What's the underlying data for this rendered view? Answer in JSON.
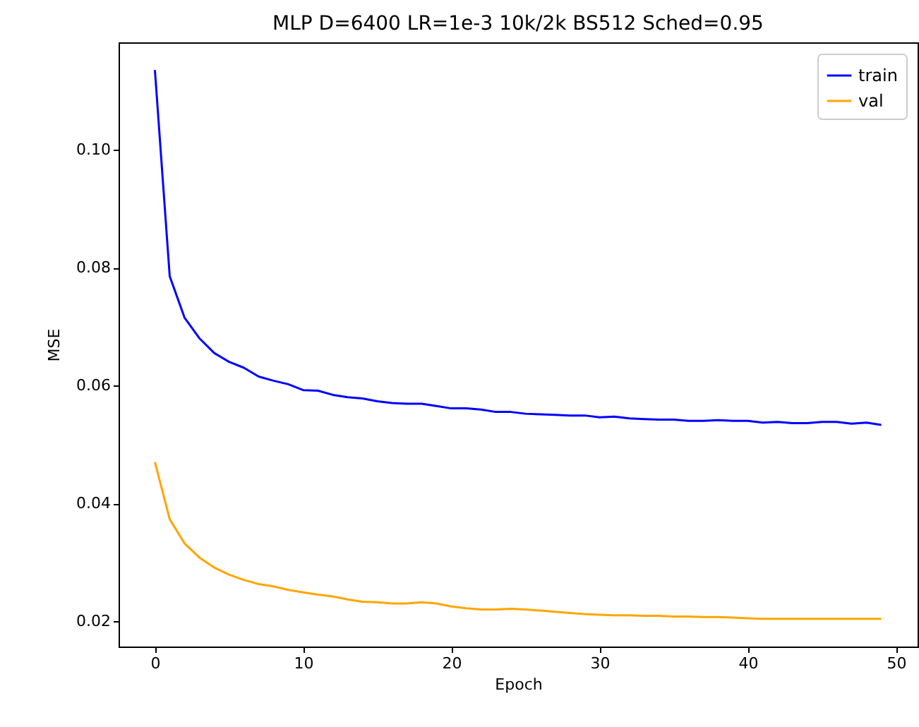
{
  "chart_data": {
    "type": "line",
    "title": "MLP D=6400 LR=1e-3 10k/2k BS512 Sched=0.95",
    "xlabel": "Epoch",
    "ylabel": "MSE",
    "x": [
      0,
      1,
      2,
      3,
      4,
      5,
      6,
      7,
      8,
      9,
      10,
      11,
      12,
      13,
      14,
      15,
      16,
      17,
      18,
      19,
      20,
      21,
      22,
      23,
      24,
      25,
      26,
      27,
      28,
      29,
      30,
      31,
      32,
      33,
      34,
      35,
      36,
      37,
      38,
      39,
      40,
      41,
      42,
      43,
      44,
      45,
      46,
      47,
      48,
      49
    ],
    "series": [
      {
        "name": "train",
        "color": "#0000ff",
        "values": [
          0.1135,
          0.0785,
          0.0715,
          0.068,
          0.0655,
          0.064,
          0.063,
          0.0615,
          0.0608,
          0.0602,
          0.0592,
          0.0591,
          0.0584,
          0.058,
          0.0578,
          0.0573,
          0.057,
          0.0569,
          0.0569,
          0.0565,
          0.0561,
          0.0561,
          0.0559,
          0.0555,
          0.0555,
          0.0552,
          0.0551,
          0.055,
          0.0549,
          0.0549,
          0.0546,
          0.0547,
          0.0544,
          0.0543,
          0.0542,
          0.0542,
          0.054,
          0.054,
          0.0541,
          0.054,
          0.054,
          0.0537,
          0.0538,
          0.0536,
          0.0536,
          0.0538,
          0.0538,
          0.0535,
          0.0537,
          0.0533
        ]
      },
      {
        "name": "val",
        "color": "#ffa500",
        "values": [
          0.047,
          0.0373,
          0.0332,
          0.0308,
          0.0291,
          0.0279,
          0.027,
          0.0263,
          0.0259,
          0.0253,
          0.0249,
          0.0245,
          0.0242,
          0.0237,
          0.0233,
          0.0232,
          0.023,
          0.023,
          0.0232,
          0.023,
          0.0225,
          0.0222,
          0.022,
          0.022,
          0.0221,
          0.022,
          0.0218,
          0.0216,
          0.0214,
          0.0212,
          0.0211,
          0.021,
          0.021,
          0.0209,
          0.0209,
          0.0208,
          0.0208,
          0.0207,
          0.0207,
          0.0206,
          0.0205,
          0.0204,
          0.0204,
          0.0204,
          0.0204,
          0.0204,
          0.0204,
          0.0204,
          0.0204,
          0.0204
        ]
      }
    ],
    "xlim": [
      -2.45,
      51.45
    ],
    "ylim": [
      0.0157,
      0.1182
    ],
    "xticks": [
      0,
      10,
      20,
      30,
      40,
      50
    ],
    "yticks": [
      0.02,
      0.04,
      0.06,
      0.08,
      {
        "value": 0.1,
        "label": "0.10"
      }
    ],
    "grid": false,
    "legend": "top right"
  }
}
